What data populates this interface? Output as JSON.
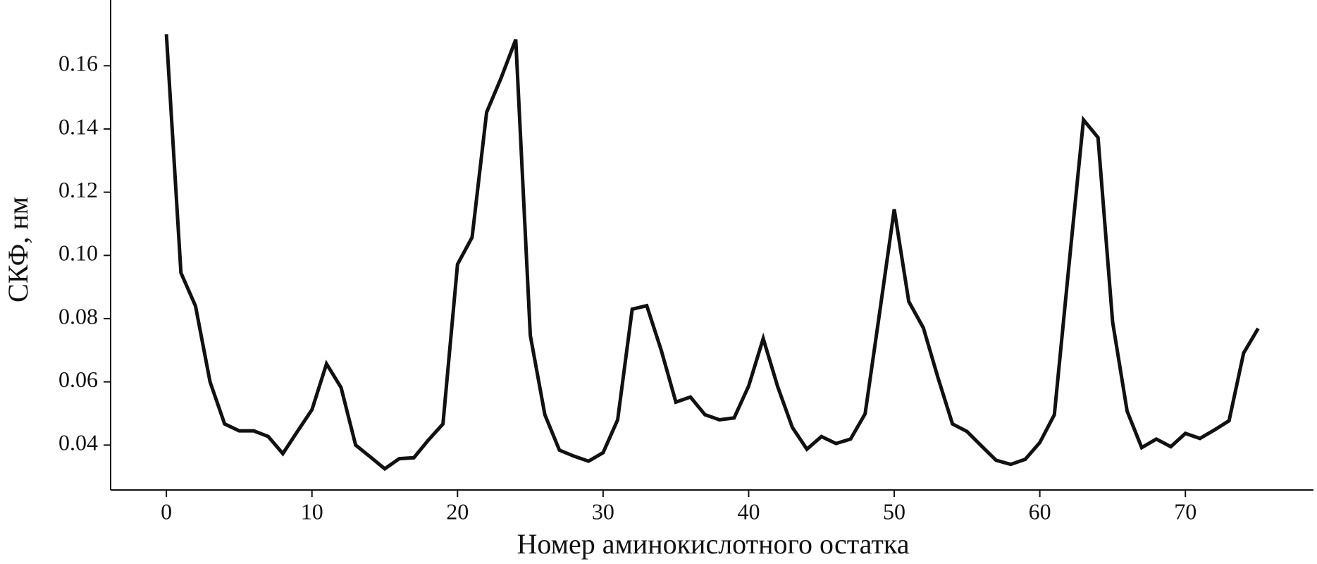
{
  "chart_data": {
    "type": "line",
    "xlabel": "Номер аминокислотного остатка",
    "ylabel": "СКФ, нм",
    "x": [
      0,
      1,
      2,
      3,
      4,
      5,
      6,
      7,
      8,
      9,
      10,
      11,
      12,
      13,
      14,
      15,
      16,
      17,
      18,
      19,
      20,
      21,
      22,
      23,
      24,
      25,
      26,
      27,
      28,
      29,
      30,
      31,
      32,
      33,
      34,
      35,
      36,
      37,
      38,
      39,
      40,
      41,
      42,
      43,
      44,
      45,
      46,
      47,
      48,
      49,
      50,
      51,
      52,
      53,
      54,
      55,
      56,
      57,
      58,
      59,
      60,
      61,
      62,
      63,
      64,
      65,
      66,
      67,
      68,
      69,
      70,
      71,
      72,
      73,
      74,
      75
    ],
    "series": [
      {
        "color": "#111111",
        "values": [
          0.17,
          0.0945,
          0.084,
          0.06,
          0.0467,
          0.0445,
          0.0445,
          0.0427,
          0.0373,
          0.0443,
          0.0512,
          0.0657,
          0.0582,
          0.04,
          0.0363,
          0.0325,
          0.0357,
          0.036,
          0.0416,
          0.0467,
          0.0972,
          0.1057,
          0.1453,
          0.1562,
          0.1683,
          0.0747,
          0.0496,
          0.0384,
          0.0365,
          0.0349,
          0.0376,
          0.048,
          0.083,
          0.0841,
          0.0699,
          0.0536,
          0.0552,
          0.0496,
          0.048,
          0.0486,
          0.0587,
          0.0737,
          0.0584,
          0.0456,
          0.0387,
          0.0427,
          0.0405,
          0.0419,
          0.0499,
          0.082,
          0.1146,
          0.0854,
          0.0771,
          0.0614,
          0.0467,
          0.0443,
          0.0397,
          0.0352,
          0.0339,
          0.0355,
          0.0408,
          0.0496,
          0.0967,
          0.1429,
          0.1373,
          0.079,
          0.0507,
          0.0392,
          0.0419,
          0.0395,
          0.0437,
          0.0421,
          0.0448,
          0.0477,
          0.0691,
          0.0769
        ]
      }
    ],
    "xlim": [
      -3.83,
      78.8
    ],
    "ylim": [
      0.0258,
      0.1808
    ],
    "xticks": [
      0,
      10,
      20,
      30,
      40,
      50,
      60,
      70
    ],
    "yticks": [
      0.04,
      0.06,
      0.08,
      {
        "value": 0.1,
        "label": "0.10"
      },
      0.12,
      0.14,
      0.16
    ],
    "grid": false
  }
}
